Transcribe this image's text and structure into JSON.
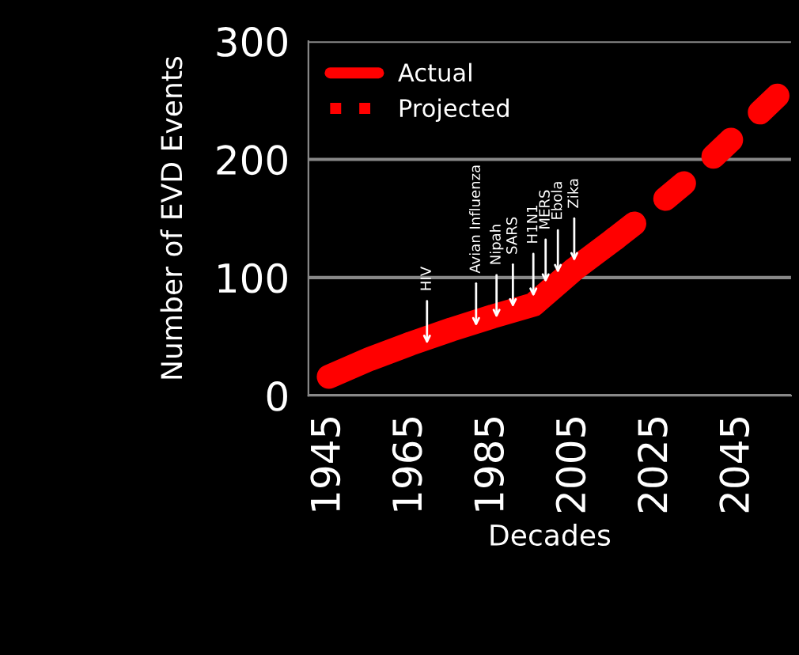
{
  "chart_data": {
    "type": "line",
    "ylabel": "Number of EVD Events",
    "xlabel": "Decades",
    "x": [
      1945,
      1955,
      1965,
      1975,
      1985,
      1995,
      2005,
      2015,
      2025,
      2035,
      2045,
      2055
    ],
    "series": [
      {
        "name": "Actual",
        "color": "#ff0000",
        "line_style": "solid",
        "values": [
          16,
          31,
          44,
          56,
          67,
          77,
          107,
          133,
          null,
          null,
          null,
          null
        ]
      },
      {
        "name": "Projected",
        "color": "#ff0000",
        "line_style": "dotted",
        "values": [
          null,
          null,
          null,
          null,
          null,
          null,
          null,
          133,
          160,
          189,
          222,
          255
        ]
      }
    ],
    "xlim": [
      1940,
      2058
    ],
    "xticks": [
      1945,
      1965,
      1985,
      2005,
      2025,
      2045
    ],
    "ylim": [
      0,
      300
    ],
    "yticks": [
      0,
      100,
      200,
      300
    ],
    "grid": "y",
    "legend": "top left",
    "annotations": [
      {
        "text": "HIV",
        "x": 1969,
        "y": 40
      },
      {
        "text": "Avian Influenza",
        "x": 1981,
        "y": 55
      },
      {
        "text": "Nipah",
        "x": 1986,
        "y": 62
      },
      {
        "text": "SARS",
        "x": 1990,
        "y": 71
      },
      {
        "text": "H1N1",
        "x": 1995,
        "y": 80
      },
      {
        "text": "MERS",
        "x": 1998,
        "y": 92
      },
      {
        "text": "Ebola",
        "x": 2001,
        "y": 100
      },
      {
        "text": "Zika",
        "x": 2005,
        "y": 110
      }
    ]
  }
}
